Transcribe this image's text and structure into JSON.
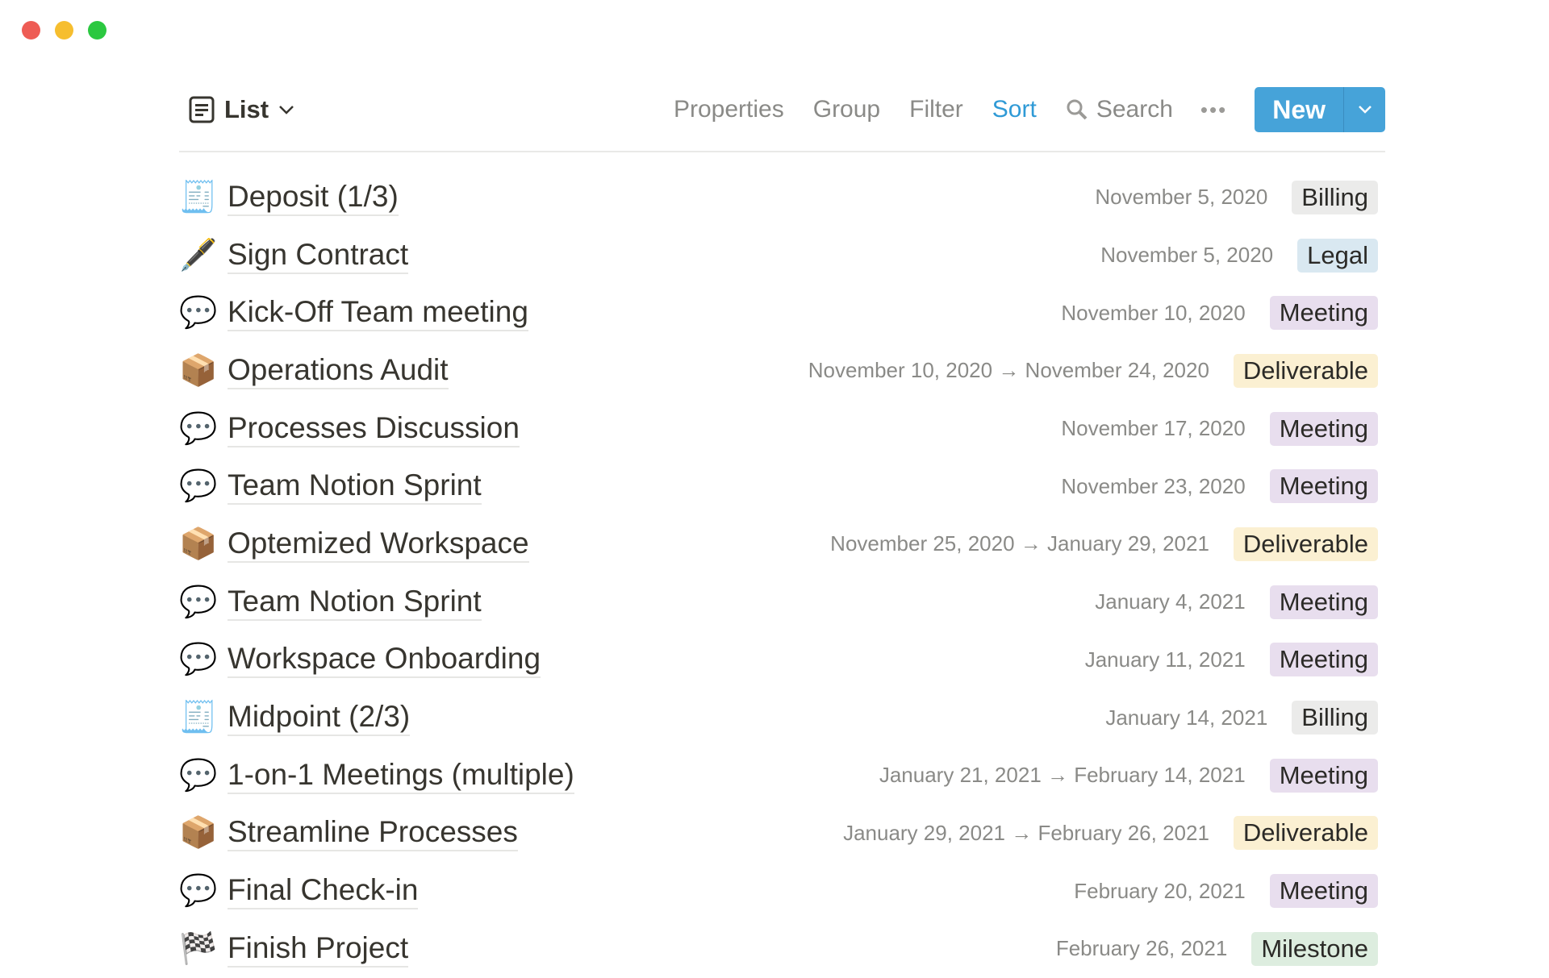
{
  "window": {
    "controls": [
      {
        "name": "close",
        "color": "#ee5c54"
      },
      {
        "name": "minimize",
        "color": "#f6be2f"
      },
      {
        "name": "maximize",
        "color": "#2bc840"
      }
    ]
  },
  "toolbar": {
    "view_label": "List",
    "properties": "Properties",
    "group": "Group",
    "filter": "Filter",
    "sort": "Sort",
    "search": "Search",
    "more": "•••",
    "new_label": "New",
    "accent": "#46a3d9"
  },
  "tag_colors": {
    "Billing": "#ebebea",
    "Legal": "#d9e8f1",
    "Meeting": "#e8deee",
    "Deliverable": "#fbf0d2",
    "Milestone": "#ddeddf"
  },
  "rows": [
    {
      "icon": "receipt-icon",
      "glyph": "🧾",
      "title": "Deposit (1/3)",
      "date": "November 5, 2020",
      "tag": "Billing"
    },
    {
      "icon": "pen-icon",
      "glyph": "🖋️",
      "title": "Sign Contract",
      "date": "November 5, 2020",
      "tag": "Legal"
    },
    {
      "icon": "speech-bubble-icon",
      "glyph": "💬",
      "title": "Kick-Off Team meeting",
      "date": "November 10, 2020",
      "tag": "Meeting"
    },
    {
      "icon": "package-icon",
      "glyph": "📦",
      "title": "Operations Audit",
      "date": "November 10, 2020 → November 24, 2020",
      "tag": "Deliverable"
    },
    {
      "icon": "speech-bubble-icon",
      "glyph": "💬",
      "title": "Processes Discussion",
      "date": "November 17, 2020",
      "tag": "Meeting"
    },
    {
      "icon": "speech-bubble-icon",
      "glyph": "💬",
      "title": "Team Notion Sprint",
      "date": "November 23, 2020",
      "tag": "Meeting"
    },
    {
      "icon": "package-icon",
      "glyph": "📦",
      "title": "Optemized Workspace",
      "date": "November 25, 2020 → January 29, 2021",
      "tag": "Deliverable"
    },
    {
      "icon": "speech-bubble-icon",
      "glyph": "💬",
      "title": "Team Notion Sprint",
      "date": "January 4, 2021",
      "tag": "Meeting"
    },
    {
      "icon": "speech-bubble-icon",
      "glyph": "💬",
      "title": "Workspace Onboarding",
      "date": "January 11, 2021",
      "tag": "Meeting"
    },
    {
      "icon": "receipt-icon",
      "glyph": "🧾",
      "title": "Midpoint (2/3)",
      "date": "January 14, 2021",
      "tag": "Billing"
    },
    {
      "icon": "speech-bubble-icon",
      "glyph": "💬",
      "title": "1-on-1 Meetings (multiple)",
      "date": "January 21, 2021 → February 14, 2021",
      "tag": "Meeting"
    },
    {
      "icon": "package-icon",
      "glyph": "📦",
      "title": "Streamline Processes",
      "date": "January 29, 2021 → February 26, 2021",
      "tag": "Deliverable"
    },
    {
      "icon": "speech-bubble-icon",
      "glyph": "💬",
      "title": "Final Check-in",
      "date": "February 20, 2021",
      "tag": "Meeting"
    },
    {
      "icon": "checkered-flag-icon",
      "glyph": "🏁",
      "title": "Finish Project",
      "date": "February 26, 2021",
      "tag": "Milestone"
    }
  ]
}
